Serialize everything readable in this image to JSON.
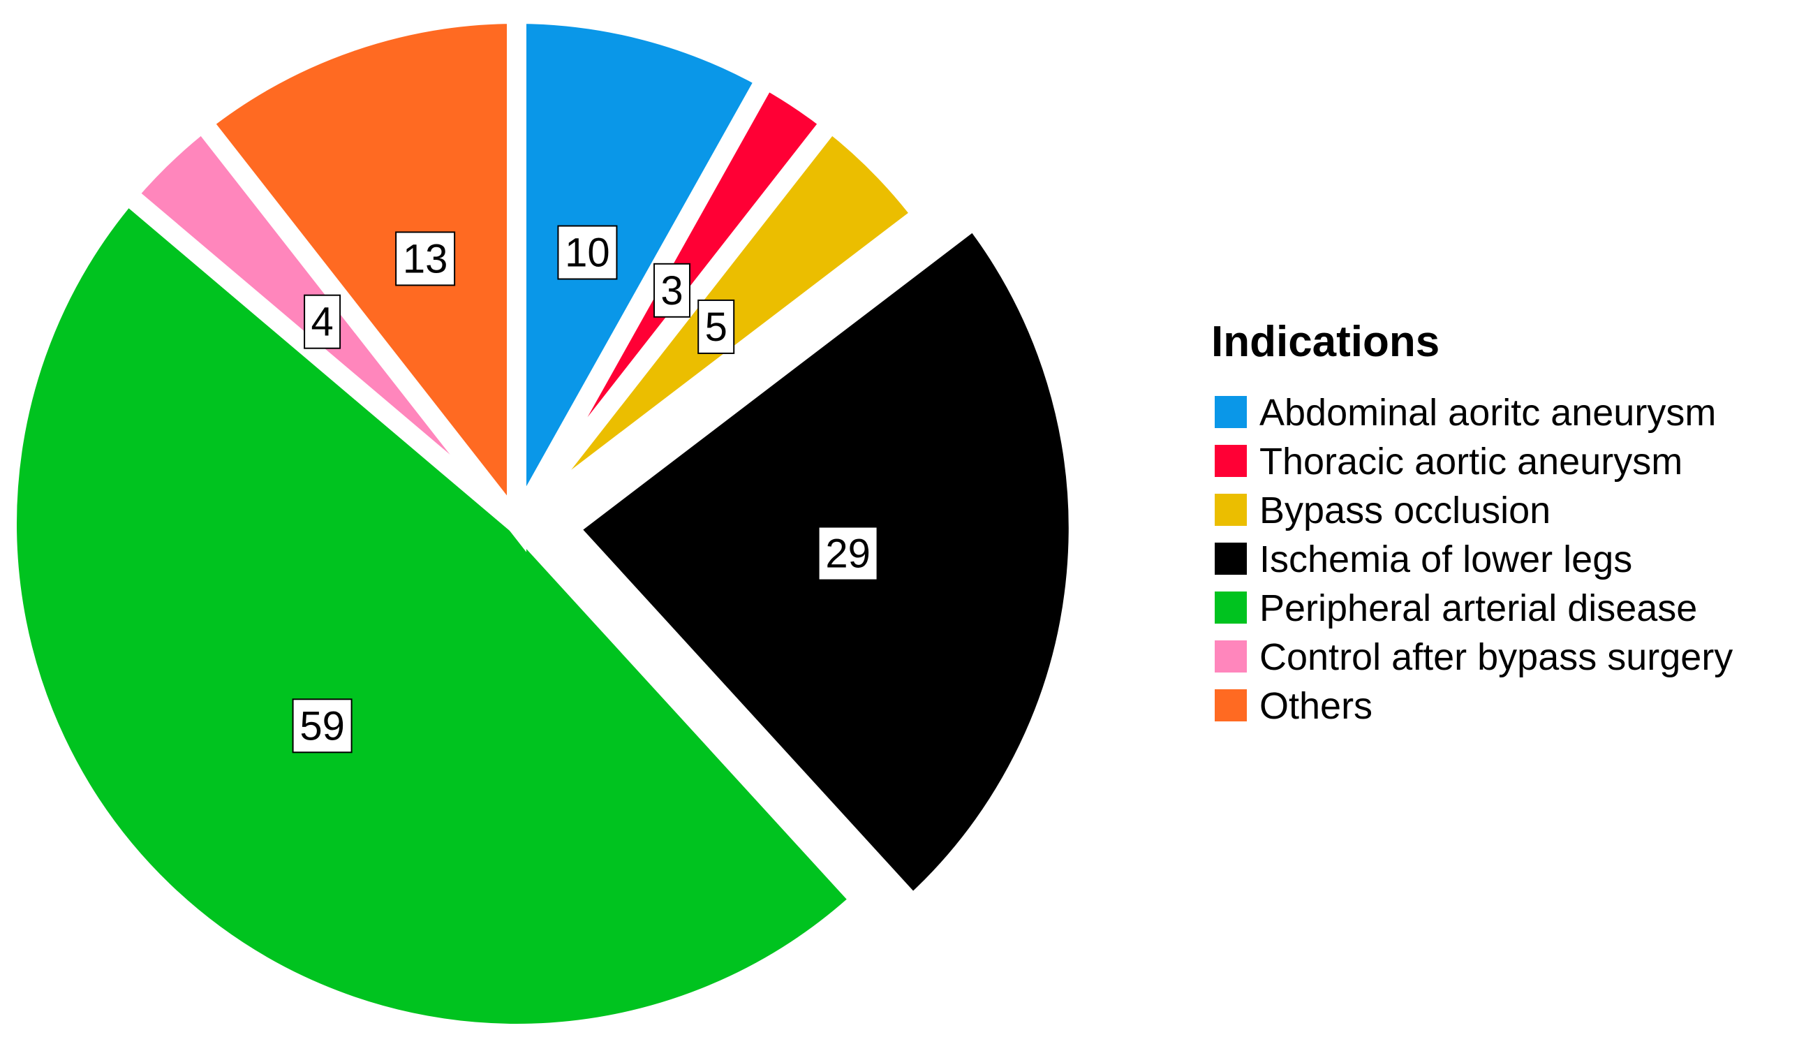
{
  "chart_data": {
    "type": "pie",
    "title": "",
    "legend": {
      "title": "Indications",
      "placement": "right"
    },
    "show_data_labels": true,
    "slices": [
      {
        "label": "Abdominal aoritc aneurysm",
        "value": 10,
        "color": "#0A97E8",
        "exploded": false
      },
      {
        "label": "Thoracic aortic aneurysm",
        "value": 3,
        "color": "#FF0035",
        "exploded": false
      },
      {
        "label": "Bypass occlusion",
        "value": 5,
        "color": "#EBBE00",
        "exploded": false
      },
      {
        "label": "Ischemia of lower legs",
        "value": 29,
        "color": "#000000",
        "exploded": true
      },
      {
        "label": "Peripheral arterial disease",
        "value": 59,
        "color": "#00C31F",
        "exploded": false
      },
      {
        "label": "Control after bypass surgery",
        "value": 4,
        "color": "#FF86BC",
        "exploded": false
      },
      {
        "label": "Others",
        "value": 13,
        "color": "#FF6A22",
        "exploded": false
      }
    ]
  }
}
